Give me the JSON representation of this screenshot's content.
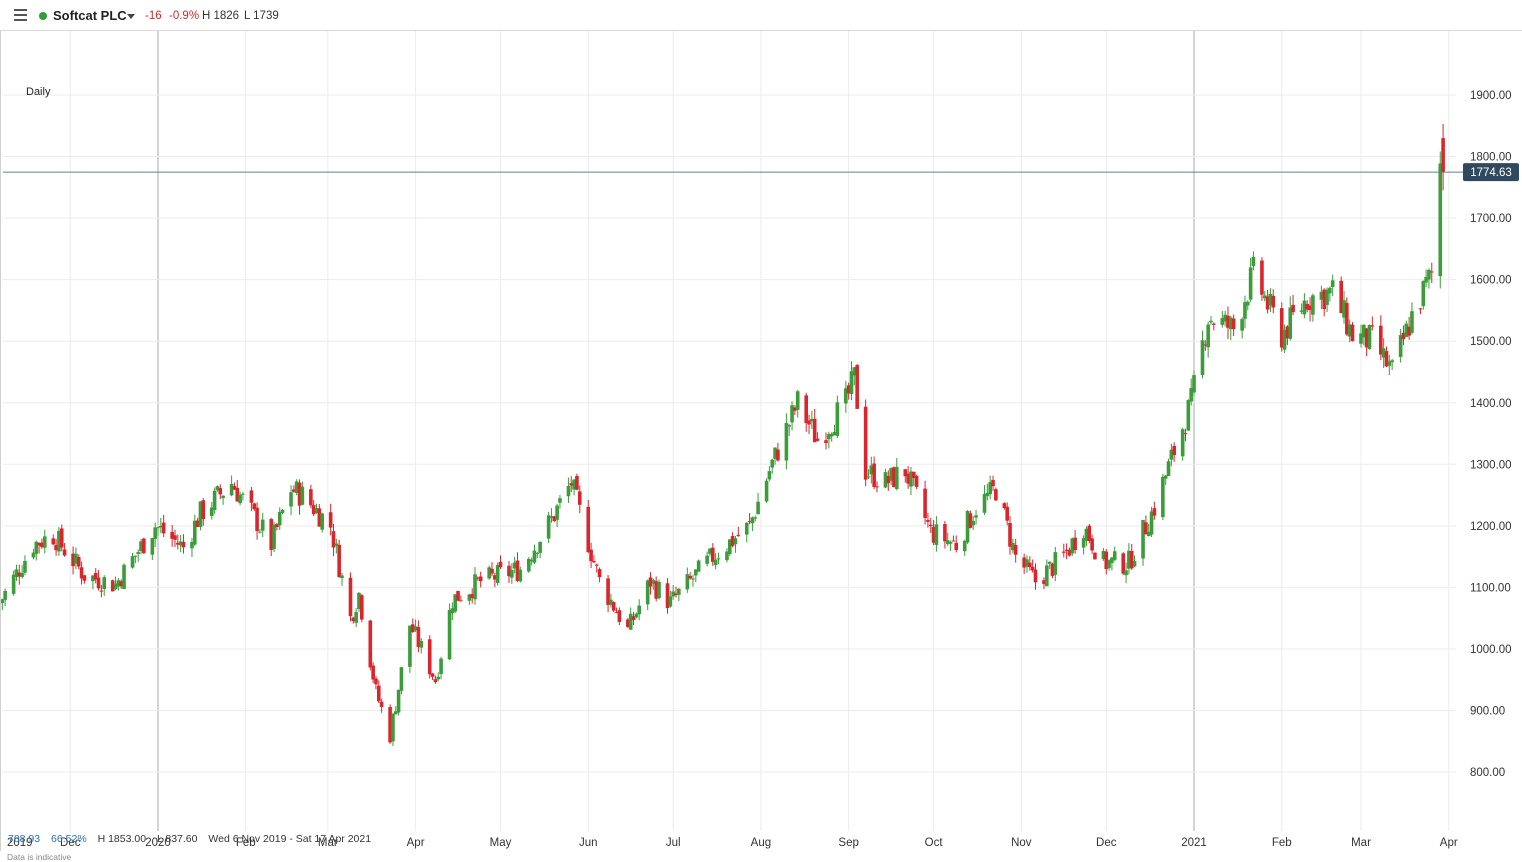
{
  "header": {
    "instrument": "Softcat PLC",
    "change": "-16",
    "change_pct": "-0.9%",
    "high": "H 1826",
    "low": "L 1739",
    "status_color": "#2e9e3a"
  },
  "timeframe": "Daily",
  "current_price": "1774.63",
  "footer": {
    "stat_a": "708.93",
    "stat_b": "66.52%",
    "high": "H 1853.00",
    "low": "L 837.60",
    "range": "Wed 6 Nov 2019 - Sat 17 Apr 2021",
    "disclaimer": "Data is indicative"
  },
  "colors": {
    "up": "#3a9d3a",
    "down": "#d9252b",
    "price_tag": "#2f4a5e"
  },
  "chart_data": {
    "type": "candlestick",
    "y_axis_side": "right",
    "ylim": [
      760,
      1960
    ],
    "y_ticks": [
      "1900.00",
      "1800.00",
      "1700.00",
      "1600.00",
      "1500.00",
      "1400.00",
      "1300.00",
      "1200.00",
      "1100.00",
      "1000.00",
      "900.00",
      "800.00"
    ],
    "x_ticks": [
      {
        "label": "2019",
        "date": "2019-11-01",
        "major": true
      },
      {
        "label": "Dec",
        "date": "2019-12-01",
        "major": false
      },
      {
        "label": "2020",
        "date": "2020-01-01",
        "major": true
      },
      {
        "label": "Feb",
        "date": "2020-02-01",
        "major": false
      },
      {
        "label": "Mar",
        "date": "2020-03-01",
        "major": false
      },
      {
        "label": "Apr",
        "date": "2020-04-01",
        "major": false
      },
      {
        "label": "May",
        "date": "2020-05-01",
        "major": false
      },
      {
        "label": "Jun",
        "date": "2020-06-01",
        "major": false
      },
      {
        "label": "Jul",
        "date": "2020-07-01",
        "major": false
      },
      {
        "label": "Aug",
        "date": "2020-08-01",
        "major": false
      },
      {
        "label": "Sep",
        "date": "2020-09-01",
        "major": false
      },
      {
        "label": "Oct",
        "date": "2020-10-01",
        "major": false
      },
      {
        "label": "Nov",
        "date": "2020-11-01",
        "major": false
      },
      {
        "label": "Dec",
        "date": "2020-12-01",
        "major": false
      },
      {
        "label": "2021",
        "date": "2021-01-01",
        "major": true
      },
      {
        "label": "Feb",
        "date": "2021-02-01",
        "major": false
      },
      {
        "label": "Mar",
        "date": "2021-03-01",
        "major": false
      },
      {
        "label": "Apr",
        "date": "2021-04-01",
        "major": false
      }
    ],
    "last_price": 1774.63,
    "close_path": [
      {
        "date": "2019-11-06",
        "close": 1075
      },
      {
        "date": "2019-11-18",
        "close": 1170
      },
      {
        "date": "2019-11-25",
        "close": 1185
      },
      {
        "date": "2019-12-06",
        "close": 1120
      },
      {
        "date": "2019-12-17",
        "close": 1105
      },
      {
        "date": "2019-12-31",
        "close": 1200
      },
      {
        "date": "2020-01-10",
        "close": 1165
      },
      {
        "date": "2020-01-16",
        "close": 1220
      },
      {
        "date": "2020-01-27",
        "close": 1270
      },
      {
        "date": "2020-02-06",
        "close": 1200
      },
      {
        "date": "2020-02-10",
        "close": 1170
      },
      {
        "date": "2020-02-17",
        "close": 1260
      },
      {
        "date": "2020-02-21",
        "close": 1250
      },
      {
        "date": "2020-03-02",
        "close": 1200
      },
      {
        "date": "2020-03-09",
        "close": 1050
      },
      {
        "date": "2020-03-12",
        "close": 1090
      },
      {
        "date": "2020-03-18",
        "close": 930
      },
      {
        "date": "2020-03-23",
        "close": 860
      },
      {
        "date": "2020-03-30",
        "close": 1040
      },
      {
        "date": "2020-04-08",
        "close": 950
      },
      {
        "date": "2020-04-14",
        "close": 1080
      },
      {
        "date": "2020-04-24",
        "close": 1110
      },
      {
        "date": "2020-05-08",
        "close": 1130
      },
      {
        "date": "2020-05-19",
        "close": 1210
      },
      {
        "date": "2020-05-26",
        "close": 1270
      },
      {
        "date": "2020-06-05",
        "close": 1110
      },
      {
        "date": "2020-06-15",
        "close": 1030
      },
      {
        "date": "2020-06-23",
        "close": 1110
      },
      {
        "date": "2020-06-30",
        "close": 1075
      },
      {
        "date": "2020-07-15",
        "close": 1150
      },
      {
        "date": "2020-07-28",
        "close": 1200
      },
      {
        "date": "2020-08-04",
        "close": 1290
      },
      {
        "date": "2020-08-14",
        "close": 1400
      },
      {
        "date": "2020-08-21",
        "close": 1340
      },
      {
        "date": "2020-08-31",
        "close": 1400
      },
      {
        "date": "2020-09-03",
        "close": 1440
      },
      {
        "date": "2020-09-07",
        "close": 1290
      },
      {
        "date": "2020-09-14",
        "close": 1270
      },
      {
        "date": "2020-09-21",
        "close": 1290
      },
      {
        "date": "2020-09-30",
        "close": 1190
      },
      {
        "date": "2020-10-09",
        "close": 1170
      },
      {
        "date": "2020-10-16",
        "close": 1230
      },
      {
        "date": "2020-10-23",
        "close": 1260
      },
      {
        "date": "2020-10-30",
        "close": 1150
      },
      {
        "date": "2020-11-06",
        "close": 1110
      },
      {
        "date": "2020-11-16",
        "close": 1150
      },
      {
        "date": "2020-11-23",
        "close": 1200
      },
      {
        "date": "2020-11-30",
        "close": 1140
      },
      {
        "date": "2020-12-09",
        "close": 1140
      },
      {
        "date": "2020-12-18",
        "close": 1230
      },
      {
        "date": "2020-12-31",
        "close": 1400
      },
      {
        "date": "2021-01-06",
        "close": 1540
      },
      {
        "date": "2021-01-15",
        "close": 1520
      },
      {
        "date": "2021-01-22",
        "close": 1610
      },
      {
        "date": "2021-02-01",
        "close": 1510
      },
      {
        "date": "2021-02-10",
        "close": 1570
      },
      {
        "date": "2021-02-19",
        "close": 1580
      },
      {
        "date": "2021-02-26",
        "close": 1510
      },
      {
        "date": "2021-03-05",
        "close": 1500
      },
      {
        "date": "2021-03-12",
        "close": 1450
      },
      {
        "date": "2021-03-19",
        "close": 1540
      },
      {
        "date": "2021-03-26",
        "close": 1610
      },
      {
        "date": "2021-03-29",
        "close": 1790
      },
      {
        "date": "2021-03-30",
        "close": 1774.63
      }
    ]
  }
}
